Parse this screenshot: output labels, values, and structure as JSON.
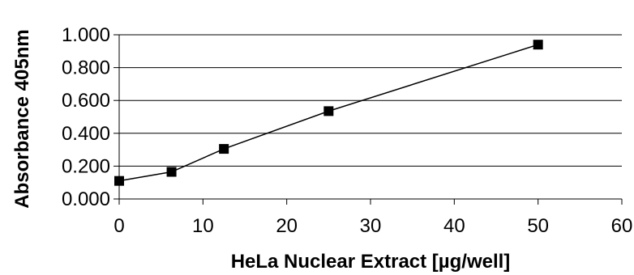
{
  "chart_data": {
    "type": "scatter",
    "title": "",
    "xlabel": "HeLa Nuclear Extract [µg/well]",
    "ylabel": "Absorbance 405nm",
    "xlim": [
      0,
      60
    ],
    "ylim": [
      0,
      1
    ],
    "x_ticks": [
      "0",
      "10",
      "20",
      "30",
      "40",
      "50",
      "60"
    ],
    "y_ticks": [
      "0.000",
      "0.200",
      "0.400",
      "0.600",
      "0.800",
      "1.000"
    ],
    "grid": {
      "x": false,
      "y": true
    },
    "legend": "none",
    "series": [
      {
        "x": [
          0,
          6.25,
          12.5,
          25,
          50
        ],
        "y": [
          0.11,
          0.165,
          0.305,
          0.535,
          0.94
        ],
        "marker": "square",
        "line": true,
        "color": "#000000"
      }
    ]
  }
}
